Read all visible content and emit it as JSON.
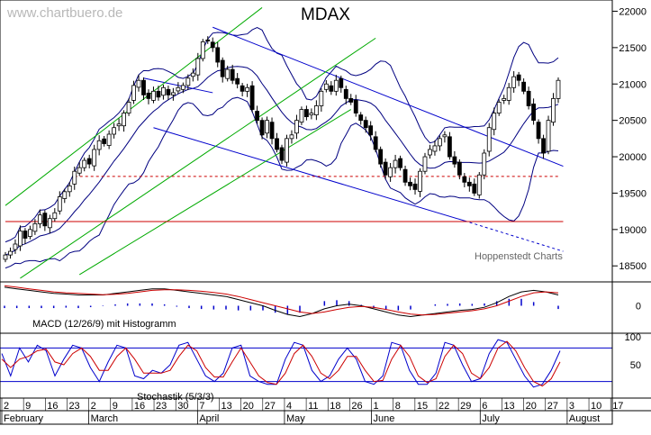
{
  "watermark": "www.chartbuero.de",
  "credit": "Hoppenstedt Charts",
  "colors": {
    "candle_up": "#ffffff",
    "candle_down": "#000000",
    "trend_blue": "#0000cc",
    "channel_green": "#00aa00",
    "bollinger": "#000080",
    "support_red": "#cc0000",
    "macd_line": "#000000",
    "signal_line": "#cc0000",
    "histogram": "#0000cc",
    "stoch_k": "#0000cc",
    "stoch_d": "#cc0000",
    "grid": "#000000"
  },
  "chart_data": [
    {
      "type": "candlestick",
      "title": "MDAX",
      "y_ticks": [
        18500,
        19000,
        19500,
        20000,
        20500,
        21000,
        21500,
        22000
      ],
      "ylim": [
        18280,
        22080
      ],
      "x_ticks": [
        "2",
        "9",
        "16",
        "23",
        "2",
        "9",
        "16",
        "23",
        "30",
        "7",
        "13",
        "20",
        "27",
        "4",
        "11",
        "18",
        "26",
        "1",
        "8",
        "15",
        "22",
        "29",
        "6",
        "13",
        "20",
        "27",
        "3",
        "10",
        "17"
      ],
      "months": [
        "February",
        "March",
        "April",
        "May",
        "June",
        "July",
        "August"
      ],
      "closes": [
        18650,
        18700,
        18800,
        18980,
        18880,
        19000,
        19080,
        19200,
        19050,
        19150,
        19230,
        19450,
        19520,
        19600,
        19800,
        19850,
        19950,
        19900,
        20100,
        20220,
        20180,
        20310,
        20400,
        20450,
        20600,
        20750,
        20980,
        21050,
        20850,
        20800,
        20900,
        20820,
        20950,
        20850,
        20880,
        20950,
        20980,
        21080,
        21150,
        21350,
        21580,
        21600,
        21500,
        21300,
        21100,
        21200,
        21050,
        21000,
        20900,
        20950,
        20650,
        20500,
        20300,
        20500,
        20250,
        20100,
        19950,
        20250,
        20300,
        20500,
        20650,
        20550,
        20600,
        20700,
        20900,
        21000,
        20900,
        21050,
        20950,
        20800,
        20750,
        20600,
        20500,
        20400,
        20300,
        20100,
        19900,
        19750,
        19850,
        19950,
        19850,
        19650,
        19600,
        19550,
        19800,
        20000,
        20100,
        20150,
        20250,
        20300,
        20000,
        19900,
        19750,
        19650,
        19600,
        19500,
        19750,
        20050,
        20400,
        20600,
        20750,
        20800,
        20950,
        21100,
        21050,
        20900,
        20700,
        20500,
        20250,
        20050,
        20500,
        20800,
        21050
      ]
    },
    {
      "type": "line",
      "title": "MACD (12/26/9) mit Histogramm",
      "y_ticks": [
        0
      ],
      "series": [
        {
          "values": [
            0.6,
            0.55,
            0.5,
            0.45,
            0.4,
            0.38,
            0.35,
            0.35,
            0.35,
            0.4,
            0.45,
            0.5,
            0.55,
            0.55,
            0.5,
            0.45,
            0.4,
            0.35,
            0.3,
            0.2,
            0.1,
            0,
            -0.15,
            -0.28,
            -0.35,
            -0.25,
            -0.1,
            0,
            0.05,
            0,
            -0.1,
            -0.2,
            -0.3,
            -0.35,
            -0.3,
            -0.25,
            -0.2,
            -0.15,
            -0.12,
            -0.05,
            0.1,
            0.3,
            0.45,
            0.5,
            0.45,
            0.35
          ]
        },
        {
          "values": [
            0.65,
            0.6,
            0.55,
            0.5,
            0.45,
            0.42,
            0.4,
            0.38,
            0.36,
            0.37,
            0.4,
            0.45,
            0.5,
            0.52,
            0.52,
            0.5,
            0.47,
            0.43,
            0.38,
            0.3,
            0.2,
            0.1,
            0,
            -0.1,
            -0.2,
            -0.25,
            -0.2,
            -0.12,
            -0.05,
            -0.02,
            -0.05,
            -0.12,
            -0.2,
            -0.27,
            -0.3,
            -0.28,
            -0.24,
            -0.2,
            -0.16,
            -0.1,
            0,
            0.15,
            0.3,
            0.42,
            0.45,
            0.42
          ]
        }
      ]
    },
    {
      "type": "line",
      "title": "Stochastik (5/3/3)",
      "y_ticks": [
        50,
        100
      ],
      "ylim": [
        0,
        100
      ],
      "reference_lines": [
        80,
        20
      ],
      "series": [
        {
          "values": [
            70,
            30,
            80,
            55,
            85,
            75,
            30,
            60,
            85,
            80,
            45,
            20,
            55,
            85,
            80,
            30,
            25,
            40,
            35,
            50,
            85,
            90,
            60,
            30,
            20,
            35,
            80,
            85,
            30,
            20,
            15,
            15,
            60,
            90,
            85,
            40,
            20,
            30,
            60,
            80,
            60,
            20,
            15,
            30,
            90,
            85,
            40,
            15,
            15,
            35,
            90,
            85,
            50,
            20,
            25,
            70,
            95,
            90,
            60,
            30,
            10,
            15,
            40,
            75
          ]
        },
        {
          "values": [
            60,
            45,
            60,
            65,
            75,
            78,
            55,
            50,
            70,
            80,
            65,
            40,
            40,
            65,
            80,
            60,
            35,
            35,
            35,
            40,
            65,
            85,
            75,
            45,
            28,
            28,
            55,
            80,
            55,
            30,
            18,
            15,
            35,
            70,
            85,
            65,
            35,
            25,
            40,
            65,
            65,
            40,
            20,
            22,
            60,
            85,
            65,
            30,
            18,
            25,
            65,
            85,
            70,
            35,
            25,
            45,
            80,
            92,
            75,
            45,
            20,
            12,
            25,
            55
          ]
        }
      ]
    }
  ]
}
